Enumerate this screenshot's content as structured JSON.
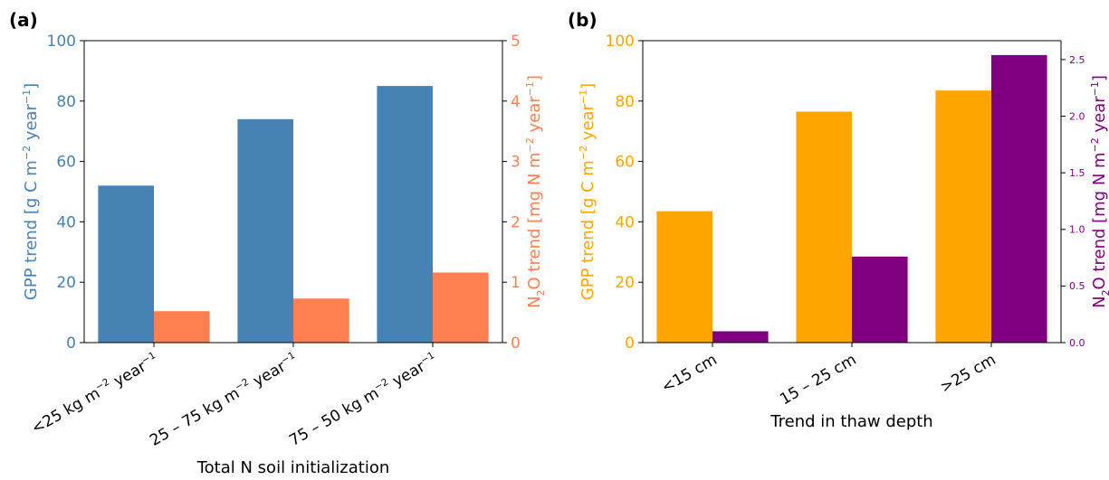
{
  "chart_data": [
    {
      "panel_label": "(a)",
      "type": "bar",
      "categories": [
        "<25 kg m-2 year-1",
        "25 – 75 kg m-2 year-1",
        "75 – 50 kg m-2 year-1"
      ],
      "category_labels": [
        {
          "main": "<25 kg m",
          "sup1": "−2",
          "mid": " year",
          "sup2": "−1"
        },
        {
          "main": "25 – 75 kg m",
          "sup1": "−2",
          "mid": " year",
          "sup2": "−1"
        },
        {
          "main": "75 – 50 kg m",
          "sup1": "−2",
          "mid": " year",
          "sup2": "−1"
        }
      ],
      "xlabel": "Total N soil initialization",
      "series": [
        {
          "name": "GPP trend",
          "axis": "left",
          "color": "#4682b4",
          "values": [
            52,
            74,
            85
          ]
        },
        {
          "name": "N2O trend",
          "axis": "right",
          "color": "#ff7f50",
          "values": [
            0.52,
            0.73,
            1.16
          ]
        }
      ],
      "ylabel_left": {
        "pre": "GPP trend [g C m",
        "sup1": "−2",
        "mid": " year",
        "sup2": "−1",
        "post": "]"
      },
      "ylabel_right": {
        "pre": "N",
        "sub": "2",
        "mid0": "O trend [mg N m",
        "sup1": "−2",
        "mid": " year",
        "sup2": "−1",
        "post": "]"
      },
      "ylim_left": [
        0,
        100
      ],
      "ylim_right": [
        0,
        5
      ],
      "yticks_left": [
        "0",
        "20",
        "40",
        "60",
        "80",
        "100"
      ],
      "yticks_right": [
        "0",
        "1",
        "2",
        "3",
        "4",
        "5"
      ],
      "left_axis_color": "#4682b4",
      "right_axis_color": "#ff7f50",
      "grid": false
    },
    {
      "panel_label": "(b)",
      "type": "bar",
      "categories": [
        "<15 cm",
        "15 – 25 cm",
        ">25 cm"
      ],
      "category_labels": [
        {
          "main": "<15 cm"
        },
        {
          "main": "15 – 25 cm"
        },
        {
          "main": ">25 cm"
        }
      ],
      "xlabel": "Trend in thaw depth",
      "series": [
        {
          "name": "GPP trend",
          "axis": "left",
          "color": "#ffa500",
          "values": [
            43.5,
            76.5,
            83.5
          ]
        },
        {
          "name": "N2O trend",
          "axis": "right",
          "color": "#800080",
          "values": [
            0.1,
            0.76,
            2.54
          ]
        }
      ],
      "ylabel_left": {
        "pre": "GPP trend [g C m",
        "sup1": "−2",
        "mid": " year",
        "sup2": "−1",
        "post": "]"
      },
      "ylabel_right": {
        "pre": "N",
        "sub": "2",
        "mid0": "O trend [mg N m",
        "sup1": "−2",
        "mid": " year",
        "sup2": "−1",
        "post": "]"
      },
      "ylim_left": [
        0,
        100
      ],
      "ylim_right": [
        0,
        2.667
      ],
      "yticks_left": [
        "0",
        "20",
        "40",
        "60",
        "80",
        "100"
      ],
      "yticks_right": [
        "0.0",
        "0.5",
        "1.0",
        "1.5",
        "2.0",
        "2.5"
      ],
      "left_axis_color": "#ffa500",
      "right_axis_color": "#800080",
      "grid": false
    }
  ]
}
